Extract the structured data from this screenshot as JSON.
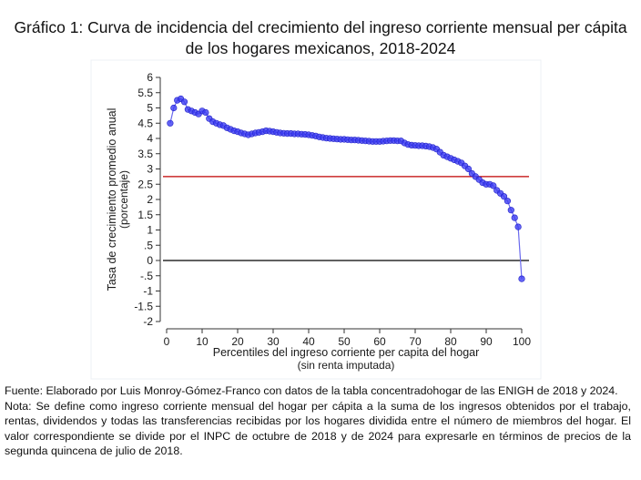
{
  "title_line1": "Gráfico 1: Curva de incidencia del crecimiento del ingreso corriente mensual per cápita",
  "title_line2": "de los hogares mexicanos, 2018-2024",
  "source": "Fuente: Elaborado por Luis Monroy-Gómez-Franco con datos de la tabla concentradohogar de las ENIGH de 2018 y 2024.",
  "note": "Nota: Se define como ingreso corriente mensual del hogar per cápita a la suma de los ingresos obtenidos por el trabajo, rentas, dividendos y todas las transferencias recibidas por los hogares dividida entre el número de miembros del hogar. El valor correspondiente se divide por el INPC de octubre de 2018 y de 2024 para expresarle en términos de precios de la segunda quincena de julio de 2018.",
  "chart_data": {
    "type": "line",
    "title": "",
    "xlabel_line1": "Percentiles del ingreso corriente per capita del hogar",
    "xlabel_line2": "(sin renta imputada)",
    "ylabel_line1": "Tasa de crecimiento promedio anual",
    "ylabel_line2": "(porcentaje)",
    "xlim": [
      0,
      100
    ],
    "ylim": [
      -2,
      6
    ],
    "x_ticks": [
      0,
      10,
      20,
      30,
      40,
      50,
      60,
      70,
      80,
      90,
      100
    ],
    "x_tick_labels": [
      "0",
      "10",
      "20",
      "30",
      "40",
      "50",
      "60",
      "70",
      "80",
      "90",
      "100"
    ],
    "y_ticks": [
      6,
      5.5,
      5,
      4.5,
      4,
      3.5,
      3,
      2.5,
      2,
      1.5,
      1,
      0.5,
      0,
      -0.5,
      -1,
      -1.5,
      -2
    ],
    "y_tick_labels": [
      "6",
      "5.5",
      "5",
      "4.5",
      "4",
      "3.5",
      "3",
      "2.5",
      "2",
      "1.5",
      "1",
      ".5",
      "0",
      "-.5",
      "-1",
      "-1.5",
      "-2"
    ],
    "grid": false,
    "reference_lines": [
      {
        "y": 2.75,
        "color": "#c00000"
      },
      {
        "y": 0,
        "color": "#000000"
      }
    ],
    "marker_color": "#3d3df2",
    "line_color": "#6a6aee",
    "series": [
      {
        "x": [
          1,
          2,
          3,
          4,
          5,
          6,
          7,
          8,
          9,
          10,
          11,
          12,
          13,
          14,
          15,
          16,
          17,
          18,
          19,
          20,
          21,
          22,
          23,
          24,
          25,
          26,
          27,
          28,
          29,
          30,
          31,
          32,
          33,
          34,
          35,
          36,
          37,
          38,
          39,
          40,
          41,
          42,
          43,
          44,
          45,
          46,
          47,
          48,
          49,
          50,
          51,
          52,
          53,
          54,
          55,
          56,
          57,
          58,
          59,
          60,
          61,
          62,
          63,
          64,
          65,
          66,
          67,
          68,
          69,
          70,
          71,
          72,
          73,
          74,
          75,
          76,
          77,
          78,
          79,
          80,
          81,
          82,
          83,
          84,
          85,
          86,
          87,
          88,
          89,
          90,
          91,
          92,
          93,
          94,
          95,
          96,
          97,
          98,
          99,
          100
        ],
        "values": [
          4.5,
          5.0,
          5.25,
          5.3,
          5.2,
          4.95,
          4.9,
          4.85,
          4.8,
          4.9,
          4.85,
          4.65,
          4.55,
          4.5,
          4.45,
          4.42,
          4.35,
          4.3,
          4.25,
          4.22,
          4.18,
          4.15,
          4.12,
          4.15,
          4.18,
          4.2,
          4.22,
          4.25,
          4.24,
          4.22,
          4.2,
          4.18,
          4.17,
          4.16,
          4.16,
          4.15,
          4.15,
          4.14,
          4.13,
          4.12,
          4.1,
          4.08,
          4.05,
          4.03,
          4.01,
          4.0,
          3.99,
          3.98,
          3.97,
          3.97,
          3.96,
          3.95,
          3.95,
          3.94,
          3.93,
          3.92,
          3.91,
          3.9,
          3.9,
          3.9,
          3.91,
          3.92,
          3.93,
          3.93,
          3.92,
          3.92,
          3.85,
          3.8,
          3.78,
          3.77,
          3.76,
          3.76,
          3.75,
          3.73,
          3.7,
          3.65,
          3.55,
          3.45,
          3.4,
          3.35,
          3.3,
          3.25,
          3.2,
          3.1,
          3.0,
          2.85,
          2.75,
          2.65,
          2.55,
          2.5,
          2.5,
          2.45,
          2.3,
          2.2,
          2.1,
          1.95,
          1.65,
          1.4,
          1.1,
          -0.6
        ]
      }
    ]
  }
}
